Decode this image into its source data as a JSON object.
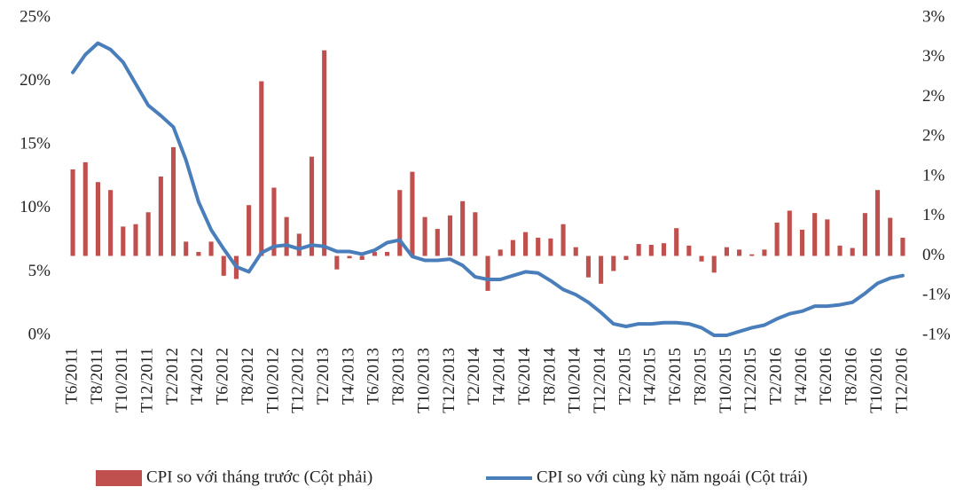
{
  "chart_data": {
    "type": "bar_line",
    "categories": [
      "T6/2011",
      null,
      "T8/2011",
      null,
      "T10/2011",
      null,
      "T12/2011",
      null,
      "T2/2012",
      null,
      "T4/2012",
      null,
      "T6/2012",
      null,
      "T8/2012",
      null,
      "T10/2012",
      null,
      "T12/2012",
      null,
      "T2/2013",
      null,
      "T4/2013",
      null,
      "T6/2013",
      null,
      "T8/2013",
      null,
      "T10/2013",
      null,
      "T12/2013",
      null,
      "T2/2014",
      null,
      "T4/2014",
      null,
      "T6/2014",
      null,
      "T8/2014",
      null,
      "T10/2014",
      null,
      "T12/2014",
      null,
      "T2/2015",
      null,
      "T4/2015",
      null,
      "T6/2015",
      null,
      "T8/2015",
      null,
      "T10/2015",
      null,
      "T12/2015",
      null,
      "T2/2016",
      null,
      "T4/2016",
      null,
      "T6/2016",
      null,
      "T8/2016",
      null,
      "T10/2016",
      null,
      "T12/2016"
    ],
    "series": [
      {
        "name": "CPI so với tháng trước (Cột phải)",
        "kind": "bar",
        "axis": "y2",
        "color": "#c0504d",
        "values": [
          1.09,
          1.18,
          0.93,
          0.83,
          0.37,
          0.4,
          0.55,
          1.0,
          1.37,
          0.18,
          0.05,
          0.18,
          -0.25,
          -0.29,
          0.64,
          2.2,
          0.86,
          0.49,
          0.28,
          1.25,
          2.59,
          -0.17,
          -0.03,
          -0.05,
          0.05,
          0.05,
          0.83,
          1.06,
          0.49,
          0.34,
          0.51,
          0.69,
          0.55,
          -0.44,
          0.08,
          0.2,
          0.3,
          0.23,
          0.22,
          0.4,
          0.11,
          -0.27,
          -0.35,
          -0.19,
          -0.05,
          0.15,
          0.14,
          0.16,
          0.35,
          0.13,
          -0.07,
          -0.21,
          0.11,
          0.08,
          0.02,
          0.08,
          0.42,
          0.57,
          0.33,
          0.54,
          0.46,
          0.13,
          0.1,
          0.54,
          0.83,
          0.48,
          0.23
        ]
      },
      {
        "name": "CPI so với cùng kỳ năm ngoái (Cột trái)",
        "kind": "line",
        "axis": "y",
        "color": "#4a7ebb",
        "values": [
          20.7,
          22.1,
          23.0,
          22.5,
          21.5,
          19.8,
          18.1,
          17.3,
          16.4,
          13.8,
          10.5,
          8.3,
          6.8,
          5.4,
          5.0,
          6.5,
          7.0,
          7.1,
          6.8,
          7.1,
          7.0,
          6.6,
          6.6,
          6.4,
          6.7,
          7.3,
          7.5,
          6.2,
          5.9,
          5.9,
          6.0,
          5.5,
          4.6,
          4.4,
          4.4,
          4.7,
          5.0,
          4.9,
          4.3,
          3.6,
          3.2,
          2.6,
          1.8,
          0.9,
          0.7,
          0.9,
          0.9,
          1.0,
          1.0,
          0.9,
          0.6,
          0.0,
          0.0,
          0.3,
          0.6,
          0.8,
          1.3,
          1.7,
          1.9,
          2.3,
          2.3,
          2.4,
          2.6,
          3.3,
          4.1,
          4.5,
          4.7
        ]
      }
    ],
    "ylim": [
      0,
      25
    ],
    "yticks": [
      {
        "value": 0,
        "label": "0%"
      },
      {
        "value": 5,
        "label": "5%"
      },
      {
        "value": 10,
        "label": "10%"
      },
      {
        "value": 15,
        "label": "15%"
      },
      {
        "value": 20,
        "label": "20%"
      },
      {
        "value": 25,
        "label": "25%"
      }
    ],
    "y2lim": [
      -1,
      3
    ],
    "y2ticks": [
      {
        "value": -1,
        "label": "-1%"
      },
      {
        "value": -0.5,
        "label": "-1%"
      },
      {
        "value": 0,
        "label": "0%"
      },
      {
        "value": 0.5,
        "label": "1%"
      },
      {
        "value": 1,
        "label": "1%"
      },
      {
        "value": 1.5,
        "label": "2%"
      },
      {
        "value": 2,
        "label": "2%"
      },
      {
        "value": 2.5,
        "label": "3%"
      },
      {
        "value": 3,
        "label": "3%"
      }
    ],
    "legend": "bottom"
  }
}
